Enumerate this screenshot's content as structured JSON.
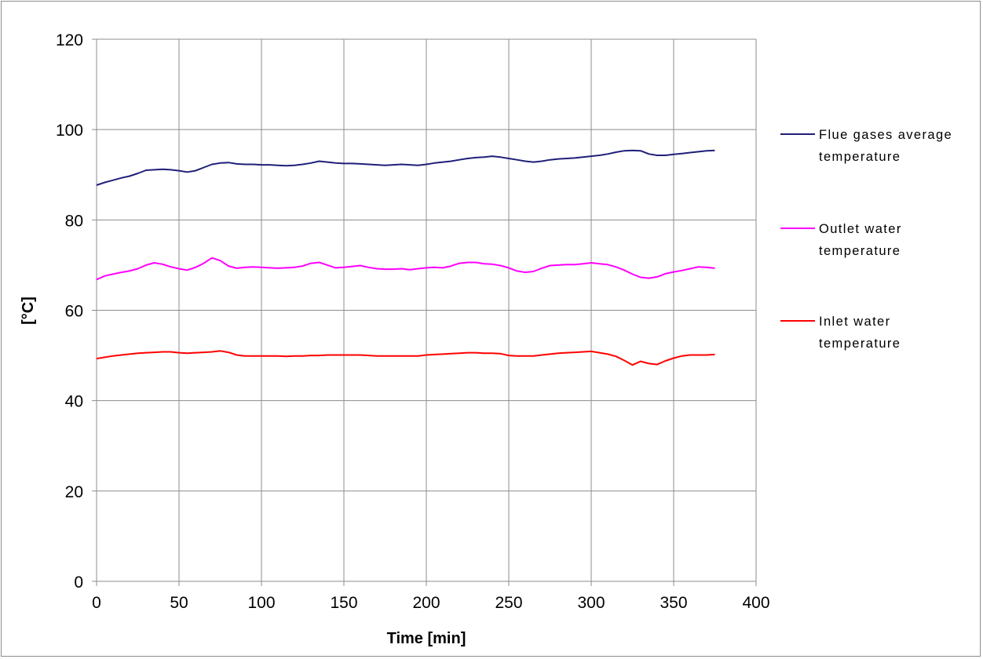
{
  "chart_data": {
    "type": "line",
    "xlabel": "Time [min]",
    "ylabel": "[°C]",
    "xlim": [
      0,
      400
    ],
    "ylim": [
      0,
      120
    ],
    "xticks": [
      0,
      50,
      100,
      150,
      200,
      250,
      300,
      350,
      400
    ],
    "yticks": [
      0,
      20,
      40,
      60,
      80,
      100,
      120
    ],
    "grid": true,
    "legend_position": "right",
    "series": [
      {
        "name_lines": [
          "Flue gases average",
          "temperature"
        ],
        "color": "#1f1f7a",
        "x": [
          0,
          5,
          10,
          15,
          20,
          25,
          30,
          35,
          40,
          45,
          50,
          55,
          60,
          65,
          70,
          75,
          80,
          85,
          90,
          95,
          100,
          105,
          110,
          115,
          120,
          125,
          130,
          135,
          140,
          145,
          150,
          155,
          160,
          165,
          170,
          175,
          180,
          185,
          190,
          195,
          200,
          205,
          210,
          215,
          220,
          225,
          230,
          235,
          240,
          245,
          250,
          255,
          260,
          265,
          270,
          275,
          280,
          285,
          290,
          295,
          300,
          305,
          310,
          315,
          320,
          325,
          330,
          335,
          340,
          345,
          350,
          355,
          360,
          365,
          370,
          375
        ],
        "y": [
          87.7,
          88.3,
          88.8,
          89.3,
          89.7,
          90.3,
          91.0,
          91.1,
          91.2,
          91.1,
          90.9,
          90.6,
          90.9,
          91.6,
          92.3,
          92.6,
          92.7,
          92.4,
          92.3,
          92.3,
          92.2,
          92.2,
          92.1,
          92.0,
          92.1,
          92.3,
          92.6,
          93.0,
          92.8,
          92.6,
          92.5,
          92.5,
          92.4,
          92.3,
          92.2,
          92.1,
          92.2,
          92.3,
          92.2,
          92.1,
          92.3,
          92.6,
          92.8,
          93.0,
          93.3,
          93.6,
          93.8,
          93.9,
          94.1,
          93.9,
          93.6,
          93.3,
          93.0,
          92.8,
          93.0,
          93.3,
          93.5,
          93.6,
          93.7,
          93.9,
          94.1,
          94.3,
          94.6,
          95.0,
          95.3,
          95.4,
          95.3,
          94.6,
          94.3,
          94.3,
          94.5,
          94.7,
          94.9,
          95.1,
          95.3,
          95.4
        ]
      },
      {
        "name_lines": [
          "Outlet water",
          "temperature"
        ],
        "color": "#ff00ff",
        "x": [
          0,
          5,
          10,
          15,
          20,
          25,
          30,
          35,
          40,
          45,
          50,
          55,
          60,
          65,
          70,
          75,
          80,
          85,
          90,
          95,
          100,
          105,
          110,
          115,
          120,
          125,
          130,
          135,
          140,
          145,
          150,
          155,
          160,
          165,
          170,
          175,
          180,
          185,
          190,
          195,
          200,
          205,
          210,
          215,
          220,
          225,
          230,
          235,
          240,
          245,
          250,
          255,
          260,
          265,
          270,
          275,
          280,
          285,
          290,
          295,
          300,
          305,
          310,
          315,
          320,
          325,
          330,
          335,
          340,
          345,
          350,
          355,
          360,
          365,
          370,
          375
        ],
        "y": [
          66.8,
          67.6,
          68.0,
          68.4,
          68.7,
          69.2,
          70.0,
          70.5,
          70.2,
          69.6,
          69.2,
          68.9,
          69.5,
          70.4,
          71.6,
          71.0,
          69.8,
          69.3,
          69.5,
          69.6,
          69.5,
          69.4,
          69.3,
          69.4,
          69.5,
          69.8,
          70.4,
          70.6,
          70.0,
          69.4,
          69.5,
          69.7,
          69.9,
          69.5,
          69.2,
          69.1,
          69.1,
          69.2,
          69.0,
          69.2,
          69.4,
          69.5,
          69.4,
          69.8,
          70.4,
          70.6,
          70.6,
          70.3,
          70.2,
          69.9,
          69.4,
          68.7,
          68.4,
          68.6,
          69.3,
          69.9,
          70.0,
          70.1,
          70.1,
          70.3,
          70.5,
          70.3,
          70.1,
          69.6,
          68.9,
          68.0,
          67.3,
          67.1,
          67.4,
          68.1,
          68.5,
          68.8,
          69.2,
          69.6,
          69.5,
          69.3
        ]
      },
      {
        "name_lines": [
          "Inlet water",
          "temperature"
        ],
        "color": "#ff0000",
        "x": [
          0,
          5,
          10,
          15,
          20,
          25,
          30,
          35,
          40,
          45,
          50,
          55,
          60,
          65,
          70,
          75,
          80,
          85,
          90,
          95,
          100,
          105,
          110,
          115,
          120,
          125,
          130,
          135,
          140,
          145,
          150,
          155,
          160,
          165,
          170,
          175,
          180,
          185,
          190,
          195,
          200,
          205,
          210,
          215,
          220,
          225,
          230,
          235,
          240,
          245,
          250,
          255,
          260,
          265,
          270,
          275,
          280,
          285,
          290,
          295,
          300,
          305,
          310,
          315,
          320,
          325,
          330,
          335,
          340,
          345,
          350,
          355,
          360,
          365,
          370,
          375
        ],
        "y": [
          49.3,
          49.6,
          49.9,
          50.1,
          50.3,
          50.5,
          50.6,
          50.7,
          50.8,
          50.8,
          50.6,
          50.5,
          50.6,
          50.7,
          50.8,
          51.0,
          50.7,
          50.1,
          49.9,
          49.9,
          49.9,
          49.9,
          49.9,
          49.8,
          49.9,
          49.9,
          50.0,
          50.0,
          50.1,
          50.1,
          50.1,
          50.1,
          50.1,
          50.0,
          49.9,
          49.9,
          49.9,
          49.9,
          49.9,
          49.9,
          50.1,
          50.2,
          50.3,
          50.4,
          50.5,
          50.6,
          50.6,
          50.5,
          50.5,
          50.4,
          50.0,
          49.9,
          49.9,
          49.9,
          50.1,
          50.3,
          50.5,
          50.6,
          50.7,
          50.8,
          50.9,
          50.6,
          50.3,
          49.8,
          48.9,
          47.9,
          48.7,
          48.2,
          48.0,
          48.8,
          49.4,
          49.9,
          50.1,
          50.1,
          50.1,
          50.2
        ]
      }
    ]
  }
}
